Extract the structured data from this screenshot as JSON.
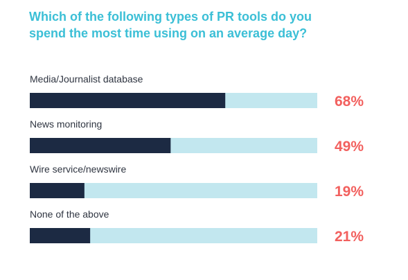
{
  "chart_data": {
    "type": "bar",
    "orientation": "horizontal",
    "title": "Which of the following types of PR tools do you spend the most time using on an average day?",
    "title_lines": [
      "Which of the following types of PR tools do you",
      "spend the most time using on an average day?"
    ],
    "categories": [
      "Media/Journalist database",
      "News monitoring",
      "Wire service/newswire",
      "None of the above"
    ],
    "values": [
      68,
      49,
      19,
      21
    ],
    "value_labels": [
      "68%",
      "49%",
      "19%",
      "21%"
    ],
    "xlim": [
      0,
      100
    ],
    "unit": "%",
    "grid": false,
    "legend": "none"
  },
  "colors": {
    "title": "#3bbfd6",
    "bar_fill": "#1c2a43",
    "bar_track": "#c2e7ef",
    "value_label": "#f2605e",
    "category_label": "#2f3541"
  }
}
